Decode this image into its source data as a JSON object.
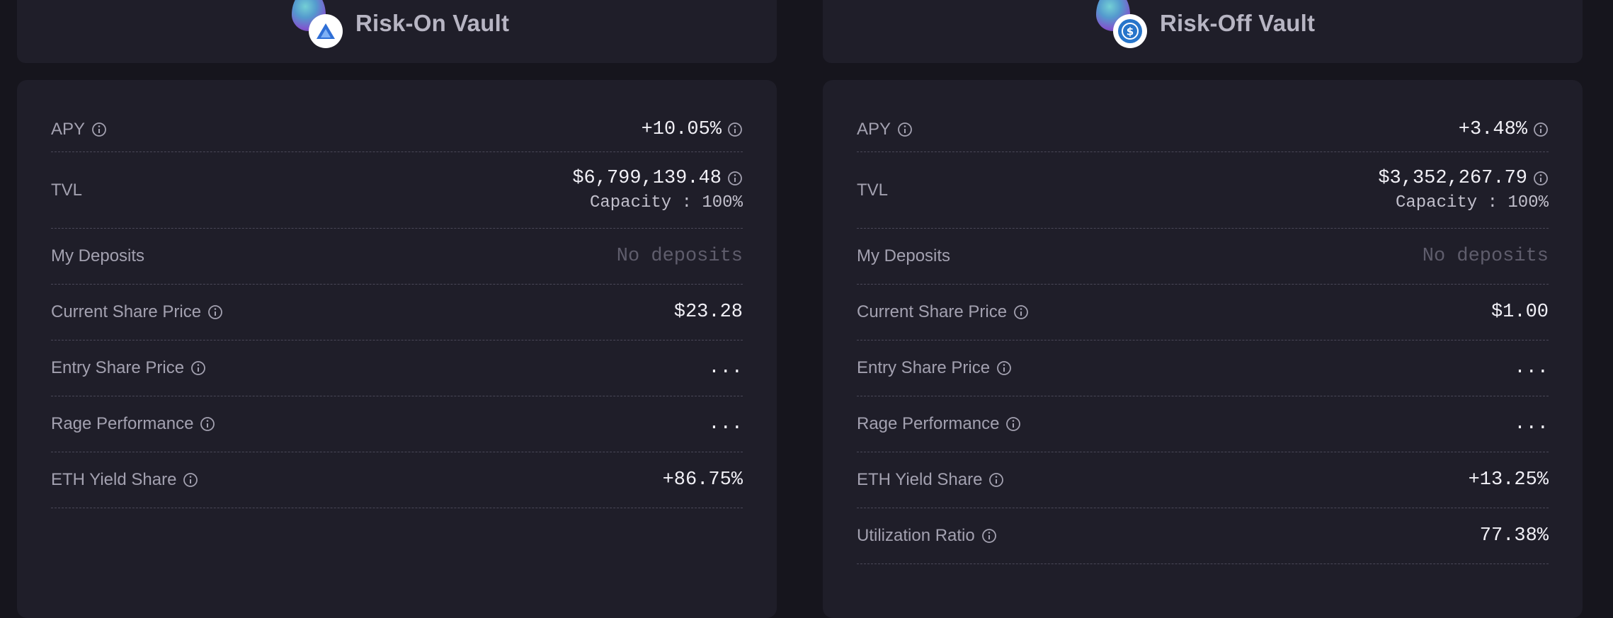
{
  "vaults": [
    {
      "title": "Risk-On Vault",
      "token_icon": "triangle-token-icon",
      "rows": {
        "apy": {
          "label": "APY",
          "value": "+10.05%"
        },
        "tvl": {
          "label": "TVL",
          "value": "$6,799,139.48",
          "capacity": "Capacity : 100%"
        },
        "deposits": {
          "label": "My Deposits",
          "value": "No deposits"
        },
        "current_price": {
          "label": "Current Share Price",
          "value": "$23.28"
        },
        "entry_price": {
          "label": "Entry Share Price",
          "value": "..."
        },
        "rage": {
          "label": "Rage Performance",
          "value": "..."
        },
        "yield_share": {
          "label": "ETH Yield Share",
          "value": "+86.75%"
        }
      }
    },
    {
      "title": "Risk-Off Vault",
      "token_icon": "usdc-token-icon",
      "rows": {
        "apy": {
          "label": "APY",
          "value": "+3.48%"
        },
        "tvl": {
          "label": "TVL",
          "value": "$3,352,267.79",
          "capacity": "Capacity : 100%"
        },
        "deposits": {
          "label": "My Deposits",
          "value": "No deposits"
        },
        "current_price": {
          "label": "Current Share Price",
          "value": "$1.00"
        },
        "entry_price": {
          "label": "Entry Share Price",
          "value": "..."
        },
        "rage": {
          "label": "Rage Performance",
          "value": "..."
        },
        "yield_share": {
          "label": "ETH Yield Share",
          "value": "+13.25%"
        },
        "utilization": {
          "label": "Utilization Ratio",
          "value": "77.38%"
        }
      }
    }
  ],
  "colors": {
    "background": "#16151d",
    "card": "#1f1e29",
    "label": "#a3a1b0",
    "value": "#f1f0f6",
    "muted": "#5f5d6c"
  }
}
